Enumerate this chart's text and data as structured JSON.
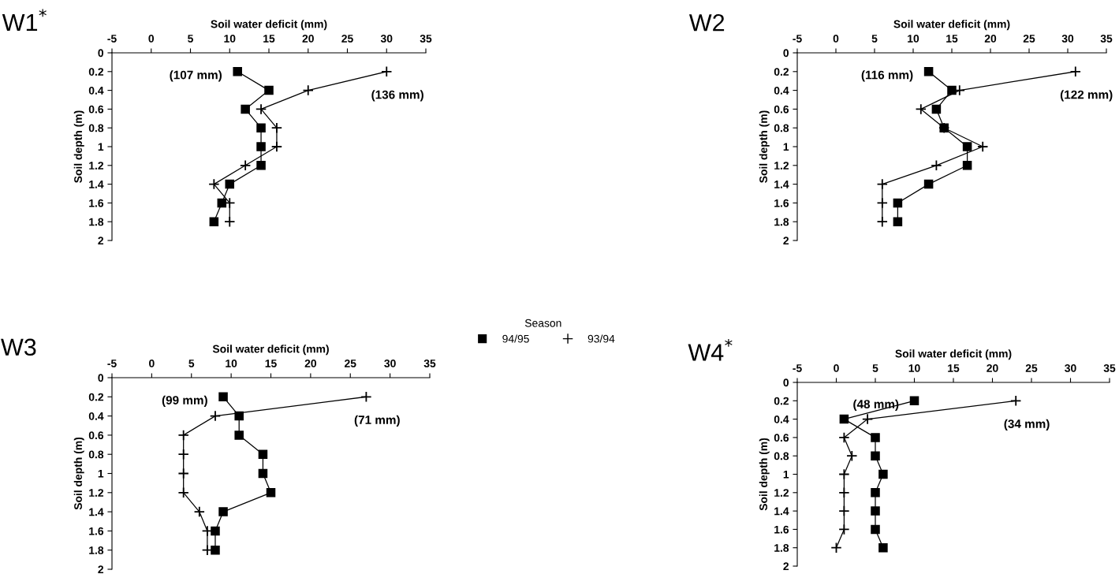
{
  "chart_data": [
    {
      "type": "line",
      "title": "W1$^{*}$",
      "xlabel": "Soil water deficit (mm)",
      "ylabel": "Soil depth (m)",
      "xlim": [
        -5,
        35
      ],
      "xticks": [
        -5,
        0,
        5,
        10,
        15,
        20,
        25,
        30,
        35
      ],
      "ylim": [
        2,
        0
      ],
      "yticks": [
        0,
        0.2,
        0.4,
        0.6,
        0.8,
        1,
        1.2,
        1.4,
        1.6,
        1.8,
        2
      ],
      "grid": false,
      "series": [
        {
          "color": "#000000",
          "marker": "square",
          "x": [
            11,
            15,
            12,
            14,
            14,
            14,
            10,
            9,
            8
          ],
          "values": [
            0.2,
            0.4,
            0.6,
            0.8,
            1,
            1.2,
            1.4,
            1.6,
            1.8
          ]
        },
        {
          "color": "#000000",
          "marker": "cross",
          "x": [
            30,
            20,
            14,
            16,
            16,
            12,
            8,
            10,
            10
          ],
          "values": [
            0.2,
            0.4,
            0.6,
            0.8,
            1,
            1.2,
            1.4,
            1.6,
            1.8
          ]
        }
      ],
      "annotations": [
        "(107 mm)",
        "(136 mm)"
      ]
    },
    {
      "type": "line",
      "title": "W2",
      "xlabel": "Soil water deficit (mm)",
      "ylabel": "Soil depth (m)",
      "xlim": [
        -5,
        35
      ],
      "xticks": [
        -5,
        0,
        5,
        10,
        15,
        20,
        25,
        30,
        35
      ],
      "ylim": [
        2,
        0
      ],
      "yticks": [
        0,
        0.2,
        0.4,
        0.6,
        0.8,
        1,
        1.2,
        1.4,
        1.6,
        1.8,
        2
      ],
      "grid": false,
      "series": [
        {
          "color": "#000000",
          "marker": "square",
          "x": [
            12,
            15,
            13,
            14,
            17,
            17,
            12,
            8,
            8
          ],
          "values": [
            0.2,
            0.4,
            0.6,
            0.8,
            1,
            1.2,
            1.4,
            1.6,
            1.8
          ]
        },
        {
          "color": "#000000",
          "marker": "cross",
          "x": [
            31,
            16,
            11,
            14,
            19,
            13,
            6,
            6,
            6
          ],
          "values": [
            0.2,
            0.4,
            0.6,
            0.8,
            1,
            1.2,
            1.4,
            1.6,
            1.8
          ]
        }
      ],
      "annotations": [
        "(116 mm)",
        "(122 mm)"
      ]
    },
    {
      "type": "line",
      "title": "W3",
      "xlabel": "Soil water deficit (mm)",
      "ylabel": "Soil depth (m)",
      "xlim": [
        -5,
        35
      ],
      "xticks": [
        -5,
        0,
        5,
        10,
        15,
        20,
        25,
        30,
        35
      ],
      "ylim": [
        2,
        0
      ],
      "yticks": [
        0,
        0.2,
        0.4,
        0.6,
        0.8,
        1,
        1.2,
        1.4,
        1.6,
        1.8,
        2
      ],
      "grid": false,
      "legend": "top right",
      "legend_title": "Season",
      "series": [
        {
          "name": "94/95",
          "color": "#000000",
          "marker": "square",
          "x": [
            9,
            11,
            11,
            14,
            14,
            15,
            9,
            8,
            8
          ],
          "values": [
            0.2,
            0.4,
            0.6,
            0.8,
            1,
            1.2,
            1.4,
            1.6,
            1.8
          ]
        },
        {
          "name": "93/94",
          "color": "#000000",
          "marker": "cross",
          "x": [
            27,
            8,
            4,
            4,
            4,
            4,
            6,
            7,
            7
          ],
          "values": [
            0.2,
            0.4,
            0.6,
            0.8,
            1,
            1.2,
            1.4,
            1.6,
            1.8
          ]
        }
      ],
      "annotations": [
        "(99 mm)",
        "(71 mm)"
      ]
    },
    {
      "type": "line",
      "title": "W4$^{*}$",
      "xlabel": "Soil water deficit (mm)",
      "ylabel": "Soil depth (m)",
      "xlim": [
        -5,
        35
      ],
      "xticks": [
        -5,
        0,
        5,
        10,
        15,
        20,
        25,
        30,
        35
      ],
      "ylim": [
        2,
        0
      ],
      "yticks": [
        0,
        0.2,
        0.4,
        0.6,
        0.8,
        1,
        1.2,
        1.4,
        1.6,
        1.8,
        2
      ],
      "grid": false,
      "series": [
        {
          "color": "#000000",
          "marker": "square",
          "x": [
            10,
            1,
            5,
            5,
            6,
            5,
            5,
            5,
            6
          ],
          "values": [
            0.2,
            0.4,
            0.6,
            0.8,
            1,
            1.2,
            1.4,
            1.6,
            1.8
          ]
        },
        {
          "color": "#000000",
          "marker": "cross",
          "x": [
            23,
            4,
            1,
            2,
            1,
            1,
            1,
            1,
            0
          ],
          "values": [
            0.2,
            0.4,
            0.6,
            0.8,
            1,
            1.2,
            1.4,
            1.6,
            1.8
          ]
        }
      ],
      "annotations": [
        "(48 mm)",
        "(34 mm)"
      ]
    }
  ]
}
